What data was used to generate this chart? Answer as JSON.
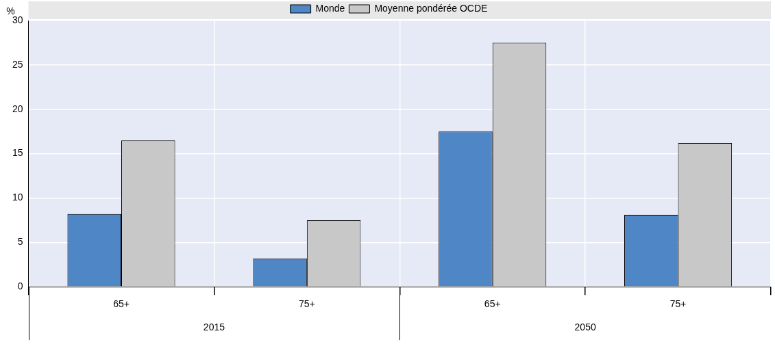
{
  "chart_data": {
    "type": "bar",
    "ylabel": "%",
    "categories": [
      "65+",
      "75+",
      "65+",
      "75+"
    ],
    "series": [
      {
        "name": "Monde",
        "color": "#4e86c6",
        "values": [
          8.2,
          3.2,
          17.5,
          8.1
        ]
      },
      {
        "name": "Moyenne pondérée OCDE",
        "color": "#c8c8c8",
        "values": [
          16.5,
          7.5,
          27.5,
          16.2
        ]
      }
    ],
    "ylim": [
      0,
      30
    ],
    "yticks": [
      0,
      5,
      10,
      15,
      20,
      25,
      30
    ],
    "grid": true,
    "legend": "top",
    "annotations": [
      "2015",
      "2050"
    ]
  }
}
